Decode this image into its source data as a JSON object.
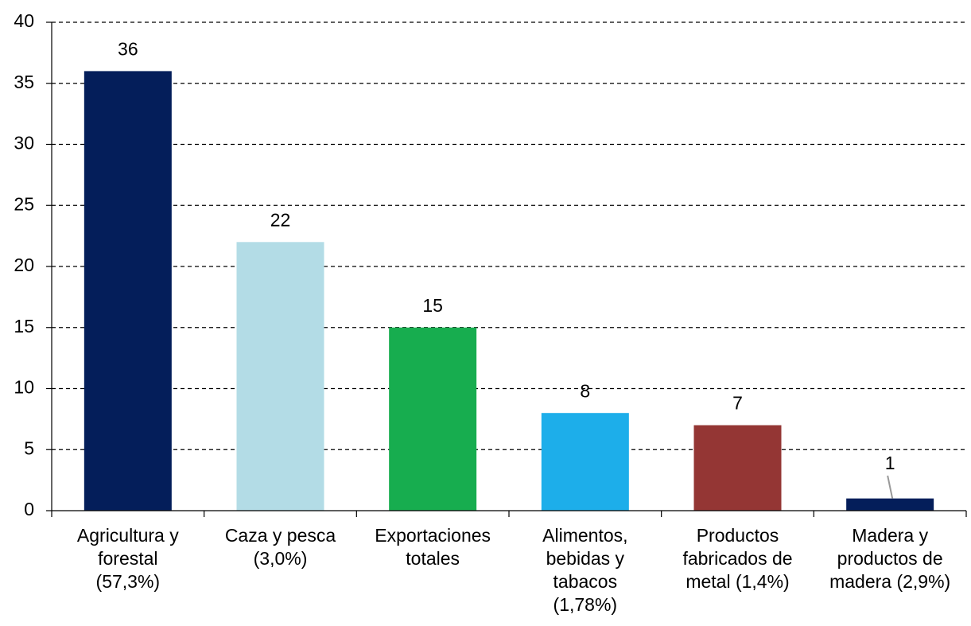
{
  "chart_data": {
    "type": "bar",
    "categories": [
      "Agricultura y\nforestal\n(57,3%)",
      "Caza y pesca\n(3,0%)",
      "Exportaciones\ntotales",
      "Alimentos,\nbebidas y\ntabacos\n(1,78%)",
      "Productos\nfabricados de\nmetal (1,4%)",
      "Madera y\nproductos de\nmadera (2,9%)"
    ],
    "values": [
      36,
      22,
      15,
      8,
      7,
      1
    ],
    "colors": [
      "#041e5a",
      "#b3dce6",
      "#17ad4f",
      "#1daeea",
      "#943634",
      "#041e5a"
    ],
    "ylim": [
      0,
      40
    ],
    "yticks": [
      0,
      5,
      10,
      15,
      20,
      25,
      30,
      35,
      40
    ],
    "grid": true
  }
}
